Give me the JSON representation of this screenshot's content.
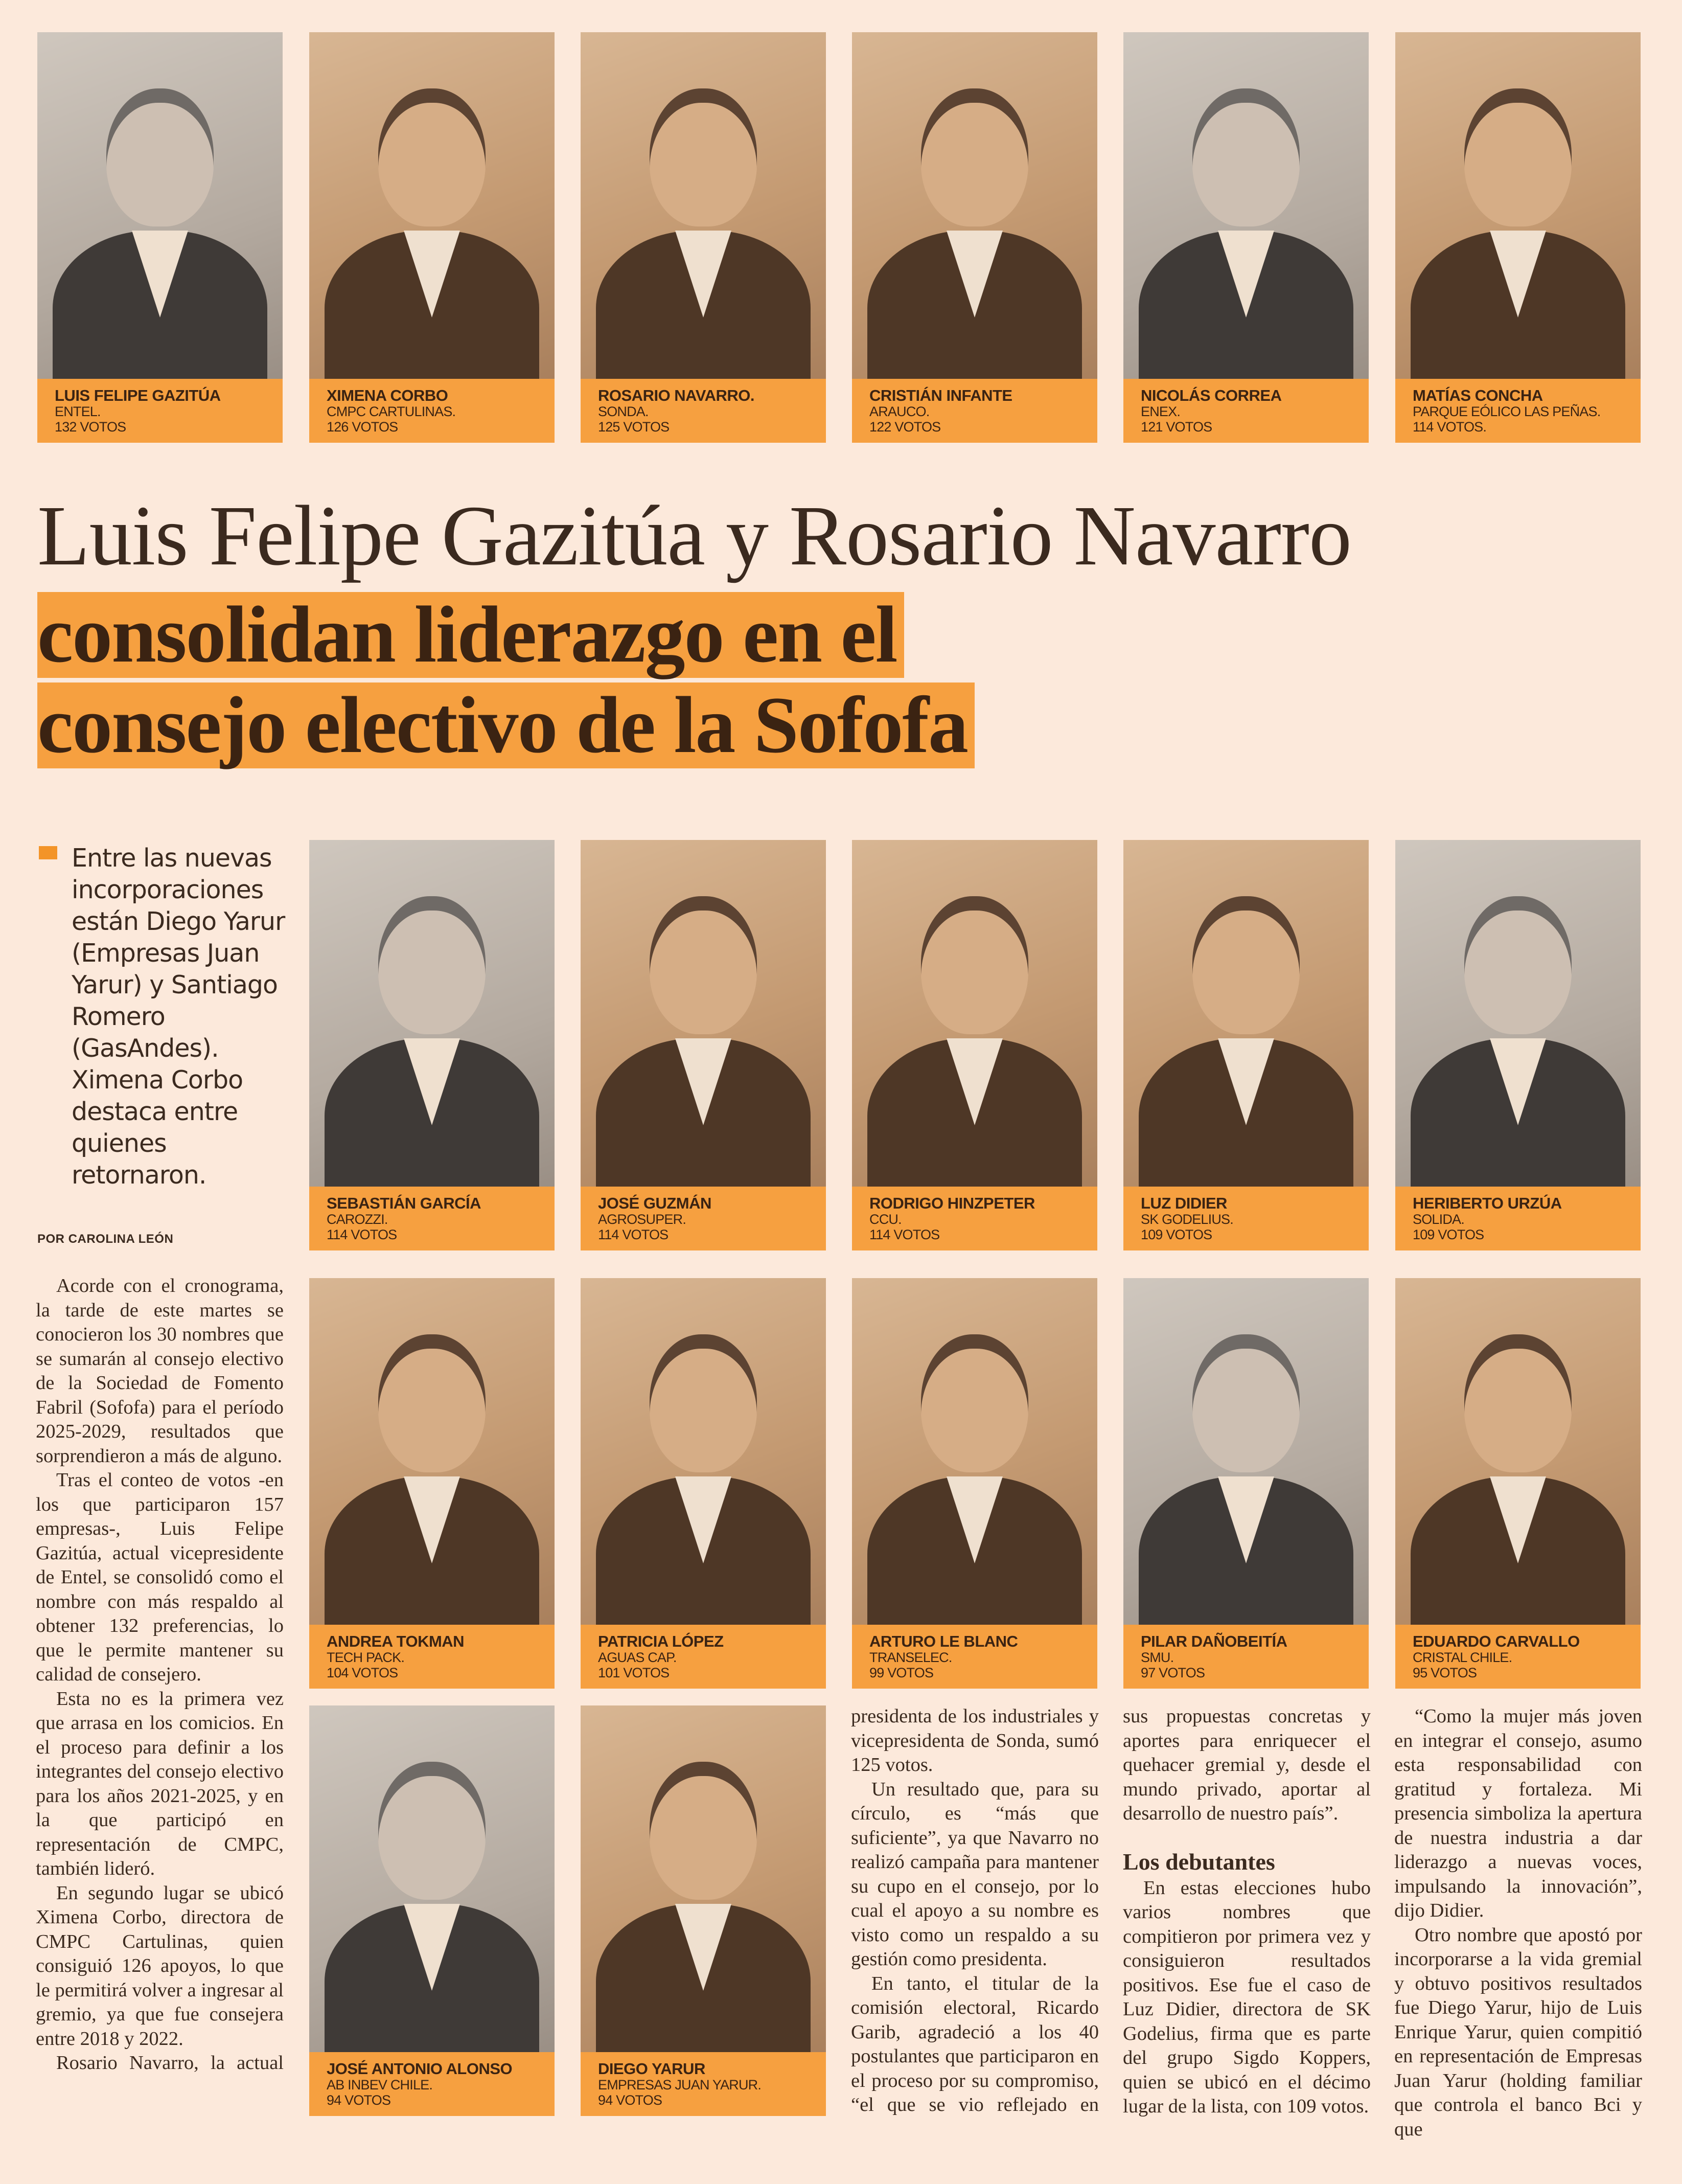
{
  "colors": {
    "background": "#fce9db",
    "accent_orange": "#f6a040",
    "text": "#3b2a1f"
  },
  "people": {
    "row1": [
      {
        "name": "LUIS FELIPE GAZITÚA",
        "company": "ENTEL.",
        "votes": "132 VOTOS",
        "tone": "gray"
      },
      {
        "name": "XIMENA CORBO",
        "company": "CMPC CARTULINAS.",
        "votes": "126 VOTOS"
      },
      {
        "name": "ROSARIO NAVARRO.",
        "company": "SONDA.",
        "votes": "125 VOTOS"
      },
      {
        "name": "CRISTIÁN INFANTE",
        "company": "ARAUCO.",
        "votes": "122 VOTOS"
      },
      {
        "name": "NICOLÁS CORREA",
        "company": "ENEX.",
        "votes": "121 VOTOS",
        "tone": "gray"
      },
      {
        "name": "MATÍAS CONCHA",
        "company": "PARQUE EÓLICO LAS PEÑAS.",
        "votes": "114 VOTOS."
      }
    ],
    "row2": [
      {
        "name": "SEBASTIÁN GARCÍA",
        "company": "CAROZZI.",
        "votes": "114 VOTOS",
        "tone": "gray"
      },
      {
        "name": "JOSÉ GUZMÁN",
        "company": "AGROSUPER.",
        "votes": "114 VOTOS"
      },
      {
        "name": "RODRIGO HINZPETER",
        "company": "CCU.",
        "votes": "114 VOTOS"
      },
      {
        "name": "LUZ DIDIER",
        "company": "SK GODELIUS.",
        "votes": "109 VOTOS"
      },
      {
        "name": "HERIBERTO URZÚA",
        "company": "SOLIDA.",
        "votes": "109 VOTOS",
        "tone": "gray"
      }
    ],
    "row3": [
      {
        "name": "ANDREA TOKMAN",
        "company": "TECH PACK.",
        "votes": "104 VOTOS"
      },
      {
        "name": "PATRICIA LÓPEZ",
        "company": "AGUAS CAP.",
        "votes": "101 VOTOS"
      },
      {
        "name": "ARTURO LE BLANC",
        "company": "TRANSELEC.",
        "votes": "99 VOTOS"
      },
      {
        "name": "PILAR DAÑOBEITÍA",
        "company": "SMU.",
        "votes": "97 VOTOS",
        "tone": "gray"
      },
      {
        "name": "EDUARDO CARVALLO",
        "company": "CRISTAL CHILE.",
        "votes": "95 VOTOS"
      }
    ],
    "row4": [
      {
        "name": "JOSÉ ANTONIO ALONSO",
        "company": "AB INBEV CHILE.",
        "votes": "94 VOTOS",
        "tone": "gray"
      },
      {
        "name": "DIEGO YARUR",
        "company": "EMPRESAS JUAN YARUR.",
        "votes": "94 VOTOS"
      }
    ]
  },
  "headline": {
    "line1": "Luis Felipe Gazitúa y Rosario Navarro",
    "line2": "consolidan liderazgo en el",
    "line3": "consejo electivo de la Sofofa"
  },
  "deck": "Entre las nuevas incorporaciones están Diego Yarur (Empresas Juan Yarur) y Santiago Romero (GasAndes). Ximena Corbo destaca entre quienes retornaron.",
  "byline": "POR CAROLINA LEÓN",
  "body": {
    "col1": [
      "Acorde con el cronograma, la tarde de este martes se conocieron los 30 nombres que se sumarán al consejo electivo de la Sociedad de Fomento Fabril (Sofofa) para el período 2025-2029, resultados que sorprendieron a más de alguno.",
      "Tras el conteo de votos -en los que participaron 157 empresas-, Luis Felipe Gazitúa, actual vicepresidente de Entel, se consolidó como el nombre con más respaldo al obtener 132 preferencias, lo que le permite mantener su calidad de consejero.",
      "Esta no es la primera vez que arrasa en los comicios. En el proceso para definir a los integrantes del consejo electivo para los años 2021-2025, y en la que participó en representación de CMPC, también lideró.",
      "En segundo lugar se ubicó Ximena Corbo, directora de CMPC Cartulinas, quien consiguió 126 apoyos, lo que le permitirá volver a ingresar al gremio, ya que fue consejera entre 2018 y 2022.",
      "Rosario Navarro, la actual"
    ],
    "col2": [
      "presidenta de los industriales y vicepresidenta de Sonda, sumó 125 votos.",
      "Un resultado que, para su círculo, es “más que suficiente”, ya que Navarro no realizó campaña para mantener su cupo en el consejo, por lo cual el apoyo a su nombre es visto como un respaldo a su gestión como presidenta.",
      "En tanto, el titular de la comisión electoral, Ricardo Garib, agradeció a los 40 postulantes que participaron en el proceso por su compromiso, “el que se vio reflejado en"
    ],
    "col3": [
      "sus propuestas concretas y aportes para enriquecer el quehacer gremial y, desde el mundo privado, aportar al desarrollo de nuestro país”."
    ],
    "subhead": "Los debutantes",
    "col3b": [
      "En estas elecciones hubo varios nombres que compitieron por primera vez y consiguieron resultados positivos. Ese fue el caso de Luz Didier, directora de SK Godelius, firma que es parte del grupo Sigdo Koppers, quien se ubicó en el décimo lugar de la lista, con 109 votos."
    ],
    "col4": [
      "“Como la mujer más joven en integrar el consejo, asumo esta responsabilidad con gratitud y fortaleza. Mi presencia simboliza la apertura de nuestra industria a dar liderazgo a nuevas voces, impulsando la innovación”, dijo Didier.",
      "Otro nombre que apostó por incorporarse a la vida gremial y obtuvo positivos resultados fue Diego Yarur, hijo de Luis Enrique Yarur, quien compitió en representación de Empresas Juan Yarur (holding familiar que controla el banco Bci y que"
    ]
  }
}
